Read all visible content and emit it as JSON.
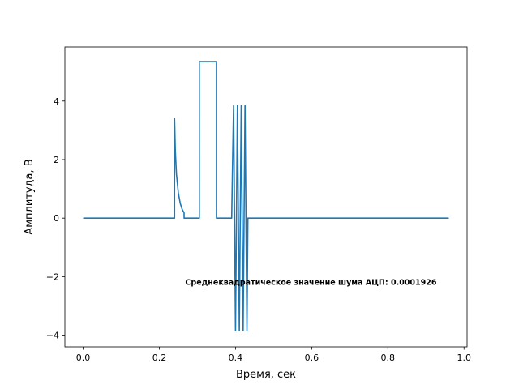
{
  "chart_data": {
    "type": "line",
    "title": "",
    "xlabel": "Время, сек",
    "ylabel": "Амплитуда, В",
    "xlim": [
      -0.048,
      1.008
    ],
    "ylim": [
      -4.4,
      5.85
    ],
    "xticks": [
      0.0,
      0.2,
      0.4,
      0.6,
      0.8,
      1.0
    ],
    "xtick_labels": [
      "0.0",
      "0.2",
      "0.4",
      "0.6",
      "0.8",
      "1.0"
    ],
    "yticks": [
      -4,
      -2,
      0,
      2,
      4
    ],
    "ytick_labels": [
      "−4",
      "−2",
      "0",
      "2",
      "4"
    ],
    "grid": false,
    "line_color": "#1f77b4",
    "annotation": {
      "text": "Среднеквадратическое значение шума АЦП: 0.0001926",
      "x": 0.268,
      "y": -2.2
    },
    "series": [
      {
        "x": [
          0.0,
          0.24,
          0.24,
          0.242,
          0.245,
          0.25,
          0.255,
          0.26,
          0.265,
          0.265,
          0.305,
          0.305,
          0.35,
          0.35,
          0.39,
          0.3925,
          0.395,
          0.3975,
          0.4,
          0.4025,
          0.405,
          0.4075,
          0.41,
          0.4125,
          0.415,
          0.4175,
          0.42,
          0.4225,
          0.425,
          0.4275,
          0.43,
          0.4325,
          0.96
        ],
        "y": [
          0.0,
          0.0,
          3.4,
          2.3,
          1.5,
          0.85,
          0.5,
          0.3,
          0.18,
          0.0,
          0.0,
          5.35,
          5.35,
          0.0,
          0.0,
          2.0,
          3.85,
          0.0,
          -3.85,
          0.0,
          3.85,
          0.0,
          -3.85,
          0.0,
          3.85,
          0.0,
          -3.85,
          0.0,
          3.85,
          0.0,
          -3.85,
          0.0,
          0.0
        ]
      }
    ]
  }
}
